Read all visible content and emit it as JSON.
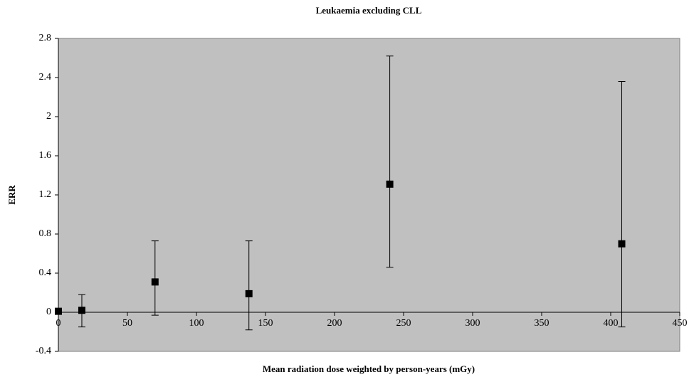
{
  "chart_data": {
    "type": "scatter",
    "title": "Leukaemia excluding CLL",
    "x_label": "Mean radiation dose weighted by person-years (mGy)",
    "y_label": "ERR",
    "x": [
      0,
      17,
      70,
      138,
      240,
      408
    ],
    "values": [
      0.01,
      0.02,
      0.31,
      0.19,
      1.31,
      0.7
    ],
    "lower": [
      null,
      -0.15,
      -0.03,
      -0.18,
      0.46,
      -0.15
    ],
    "upper": [
      null,
      0.18,
      0.73,
      0.73,
      2.62,
      2.36
    ],
    "color": "#000000",
    "background": "#c0c0c0",
    "xlim": [
      0,
      450
    ],
    "xticks": [
      0,
      50,
      100,
      150,
      200,
      250,
      300,
      350,
      400,
      450
    ],
    "ylim": [
      -0.4,
      2.8
    ],
    "yticks": [
      -0.4,
      0,
      0.4,
      0.8,
      1.2,
      1.6,
      2,
      2.4,
      2.8
    ]
  }
}
